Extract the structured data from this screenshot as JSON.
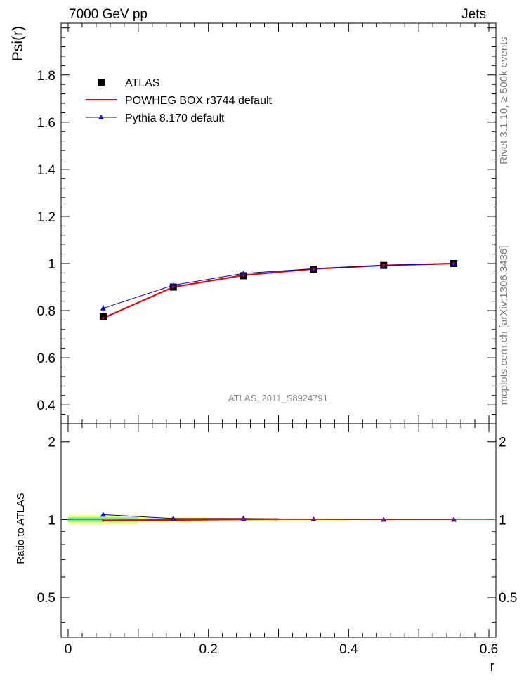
{
  "header": {
    "left": "7000 GeV pp",
    "right": "Jets"
  },
  "side_text": {
    "rivet": "Rivet 3.1.10, ≥ 500k events",
    "mcplots": "mcplots.cern.ch [arXiv:1306.3436]"
  },
  "watermark": "ATLAS_2011_S8924791",
  "colors": {
    "data": "#000000",
    "powheg": "#e8000b",
    "pythia": "#0000cc",
    "band_outer": "#ffff66",
    "band_inner": "#77ee99"
  },
  "chart_data": [
    {
      "type": "line",
      "panel": "main",
      "ylabel": "Psi(r)",
      "xlim": [
        -0.01,
        0.61
      ],
      "ylim": [
        0.32,
        2.02
      ],
      "yticks": [
        0.4,
        0.6,
        0.8,
        1,
        1.2,
        1.4,
        1.6,
        1.8
      ],
      "ytick_labels": [
        "0.4",
        "0.6",
        "0.8",
        "1",
        "1.2",
        "1.4",
        "1.6",
        "1.8"
      ],
      "legend_position": "top-left",
      "x": [
        0.05,
        0.15,
        0.25,
        0.35,
        0.45,
        0.55
      ],
      "series": [
        {
          "name": "ATLAS",
          "style": "markers-square",
          "values": [
            0.775,
            0.9,
            0.948,
            0.975,
            0.992,
            1.0
          ],
          "errors": [
            0.016,
            0.008,
            0.005,
            0.003,
            0.002,
            0.0
          ]
        },
        {
          "name": "POWHEG BOX r3744 default",
          "style": "line-red",
          "values": [
            0.768,
            0.9,
            0.95,
            0.977,
            0.992,
            1.0
          ]
        },
        {
          "name": "Pythia 8.170 default",
          "style": "line-blue-triangle",
          "values": [
            0.81,
            0.908,
            0.958,
            0.978,
            0.992,
            1.0
          ],
          "errors": [
            0.015,
            0.006,
            0.004,
            0.002,
            0.001,
            0.0
          ]
        }
      ]
    },
    {
      "type": "line",
      "panel": "ratio",
      "ylabel": "Ratio to ATLAS",
      "xlabel": "r",
      "xlim": [
        -0.01,
        0.61
      ],
      "ylim": [
        0.35,
        2.35
      ],
      "xticks": [
        0,
        0.2,
        0.4,
        0.6
      ],
      "xtick_labels": [
        "0",
        "0.2",
        "0.4",
        "0.6"
      ],
      "yticks": [
        0.5,
        1,
        2
      ],
      "ytick_labels": [
        "0.5",
        "1",
        "2"
      ],
      "x": [
        0.05,
        0.15,
        0.25,
        0.35,
        0.45,
        0.55
      ],
      "bands": {
        "outer": [
          0.04,
          0.02,
          0.015,
          0.008,
          0.005,
          0.003
        ],
        "inner": [
          0.02,
          0.01,
          0.008,
          0.004,
          0.003,
          0.002
        ]
      },
      "series": [
        {
          "name": "POWHEG BOX r3744 default",
          "style": "line-red",
          "values": [
            0.99,
            1.0,
            1.005,
            1.003,
            1.0,
            1.0
          ]
        },
        {
          "name": "Pythia 8.170 default",
          "style": "line-blue-triangle",
          "values": [
            1.045,
            1.01,
            1.01,
            1.003,
            1.0,
            1.0
          ]
        }
      ]
    }
  ]
}
